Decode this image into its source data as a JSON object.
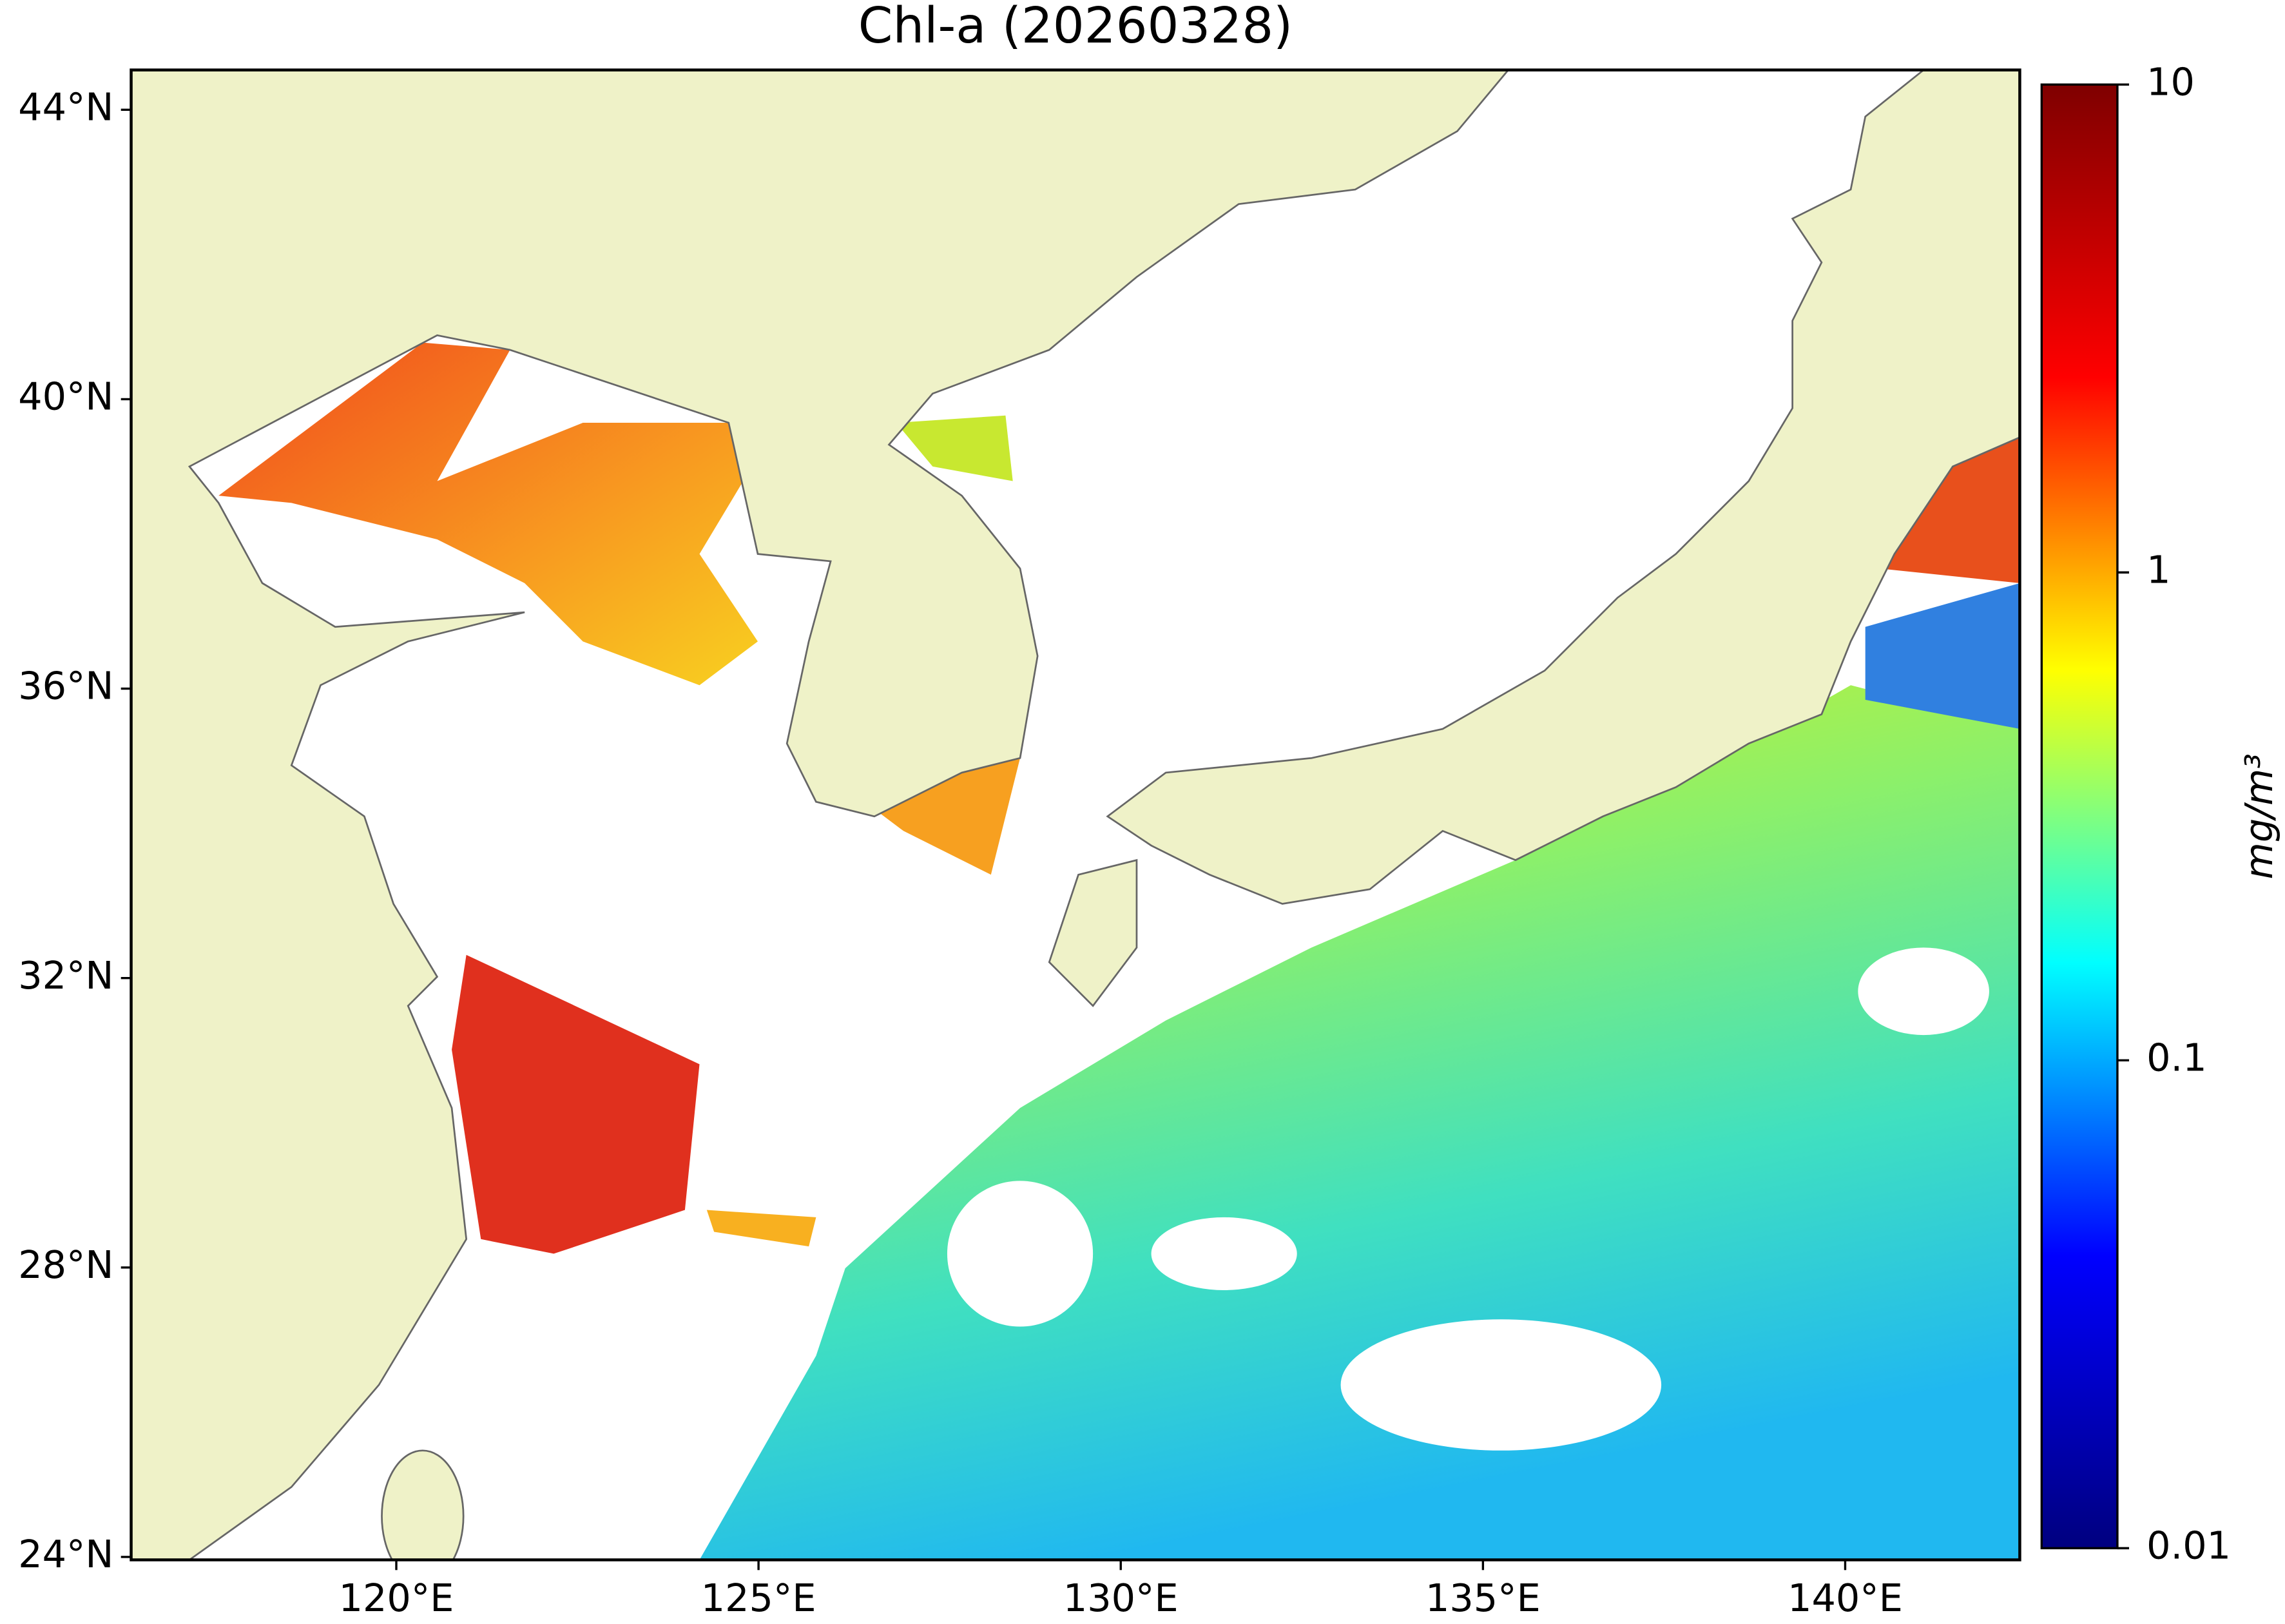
{
  "title": "Chl-a (20260328)",
  "land_color": "#eff2c8",
  "map": {
    "xlim": [
      116.34,
      142.41
    ],
    "ylim": [
      23.96,
      44.55
    ],
    "xticks": [
      {
        "value": 120,
        "label": "120°E"
      },
      {
        "value": 125,
        "label": "125°E"
      },
      {
        "value": 130,
        "label": "130°E"
      },
      {
        "value": 135,
        "label": "135°E"
      },
      {
        "value": 140,
        "label": "140°E"
      }
    ],
    "yticks": [
      {
        "value": 24,
        "label": "24°N"
      },
      {
        "value": 28,
        "label": "28°N"
      },
      {
        "value": 32,
        "label": "32°N"
      },
      {
        "value": 36,
        "label": "36°N"
      },
      {
        "value": 40,
        "label": "40°N"
      },
      {
        "value": 44,
        "label": "44°N"
      }
    ]
  },
  "colorbar": {
    "scale": "log",
    "lim": [
      0.01,
      10
    ],
    "ticks": [
      0.01,
      0.1,
      1,
      10
    ],
    "label": "mg/m³",
    "colors": [
      "#00007f",
      "#0000ff",
      "#00ffff",
      "#ffff00",
      "#ff0000",
      "#7f0000"
    ]
  }
}
